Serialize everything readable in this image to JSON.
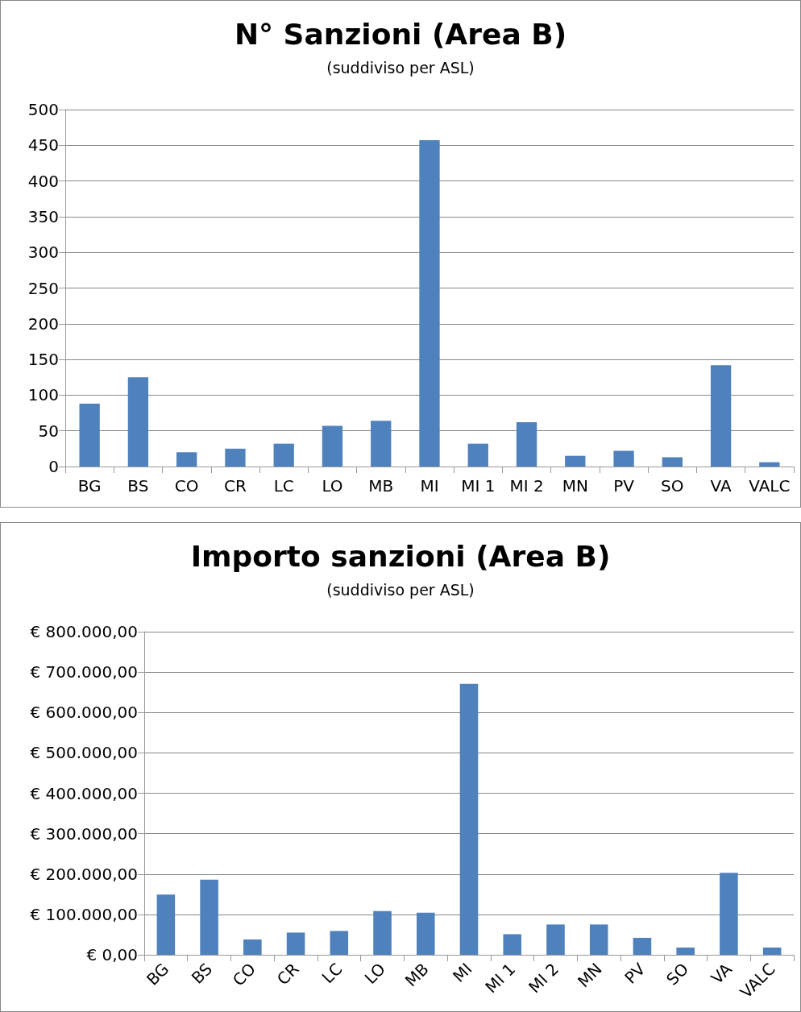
{
  "chart_data": [
    {
      "type": "bar",
      "title": "N° Sanzioni (Area B)",
      "subtitle": "(suddiviso per ASL)",
      "categories": [
        "BG",
        "BS",
        "CO",
        "CR",
        "LC",
        "LO",
        "MB",
        "MI",
        "MI 1",
        "MI 2",
        "MN",
        "PV",
        "SO",
        "VA",
        "VALC"
      ],
      "values": [
        88,
        125,
        20,
        25,
        32,
        57,
        64,
        457,
        32,
        62,
        15,
        22,
        13,
        142,
        6
      ],
      "color": "#4f81bd",
      "ylim": [
        0,
        500
      ],
      "yticks": [
        0,
        50,
        100,
        150,
        200,
        250,
        300,
        350,
        400,
        450,
        500
      ],
      "grid": "y"
    },
    {
      "type": "bar",
      "title": "Importo sanzioni (Area B)",
      "subtitle": "(suddiviso per ASL)",
      "categories": [
        "BG",
        "BS",
        "CO",
        "CR",
        "LC",
        "LO",
        "MB",
        "MI",
        "MI 1",
        "MI 2",
        "MN",
        "PV",
        "SO",
        "VA",
        "VALC"
      ],
      "values": [
        149000,
        186000,
        38000,
        55000,
        59000,
        108000,
        104000,
        671000,
        51000,
        75000,
        75000,
        42000,
        18000,
        203000,
        18000
      ],
      "color": "#4f81bd",
      "ylim": [
        0,
        800000
      ],
      "yticks": [
        {
          "value": 0,
          "label": "€ 0,00"
        },
        {
          "value": 100000,
          "label": "€ 100.000,00"
        },
        {
          "value": 200000,
          "label": "€ 200.000,00"
        },
        {
          "value": 300000,
          "label": "€ 300.000,00"
        },
        {
          "value": 400000,
          "label": "€ 400.000,00"
        },
        {
          "value": 500000,
          "label": "€ 500.000,00"
        },
        {
          "value": 600000,
          "label": "€ 600.000,00"
        },
        {
          "value": 700000,
          "label": "€ 700.000,00"
        },
        {
          "value": 800000,
          "label": "€ 800.000,00"
        }
      ],
      "grid": "y"
    }
  ]
}
